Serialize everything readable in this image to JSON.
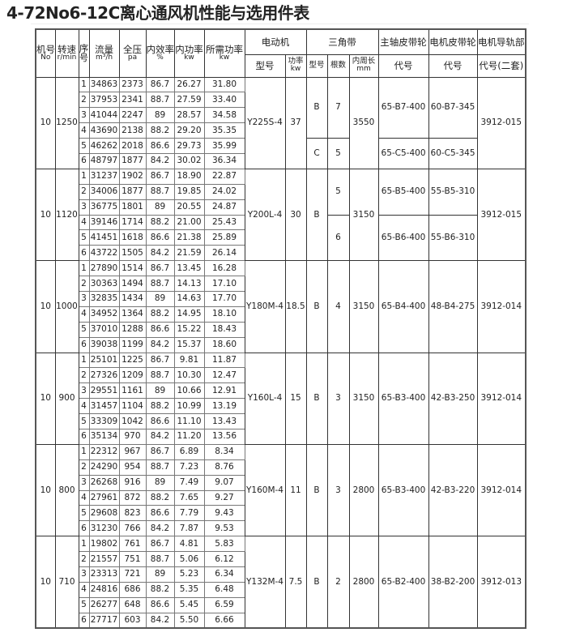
{
  "title": "4-72No6-12C离心通风机性能与选用件表",
  "headers": {
    "machine_no": "机号",
    "machine_no_unit": "No",
    "speed": "转速",
    "speed_unit": "r/min",
    "seq": "序",
    "seq_unit": "号",
    "flow": "流量",
    "flow_unit": "m³/h",
    "pressure": "全压",
    "pressure_unit": "pa",
    "efficiency": "内效率",
    "efficiency_unit": "%",
    "inner_power": "内功率",
    "inner_power_unit": "kw",
    "required_power": "所需功率",
    "required_power_unit": "kw",
    "motor": "电动机",
    "motor_model": "型号",
    "motor_power": "功率",
    "motor_power_unit": "kw",
    "vbelt": "三角带",
    "vbelt_type": "型号",
    "vbelt_count": "根数",
    "vbelt_length": "内周长",
    "vbelt_length_unit": "mm",
    "main_pulley": "主轴皮带轮",
    "main_pulley_code": "代号",
    "motor_pulley": "电机皮带轮",
    "motor_pulley_code": "代号",
    "rail": "电机导轨部",
    "rail_code": "代号(二套)"
  },
  "groups": [
    {
      "no": "10",
      "speed": "1250",
      "motor": "Y225S-4",
      "motor_kw": "37",
      "length": "3550",
      "rail": "3912-015",
      "belt_types": [
        {
          "v": "B",
          "rows": 4
        },
        {
          "v": "C",
          "rows": 2
        }
      ],
      "belt_counts": [
        {
          "v": "7",
          "rows": 4
        },
        {
          "v": "5",
          "rows": 2
        }
      ],
      "main_pulleys": [
        {
          "v": "65-B7-400",
          "rows": 4
        },
        {
          "v": "65-C5-400",
          "rows": 2
        }
      ],
      "motor_pulleys": [
        {
          "v": "60-B7-345",
          "rows": 4
        },
        {
          "v": "60-C5-345",
          "rows": 2
        }
      ],
      "rows": [
        [
          "1",
          "34863",
          "2373",
          "86.7",
          "26.27",
          "31.80"
        ],
        [
          "2",
          "37953",
          "2341",
          "88.7",
          "27.59",
          "33.40"
        ],
        [
          "3",
          "41044",
          "2247",
          "89",
          "28.57",
          "34.58"
        ],
        [
          "4",
          "43690",
          "2138",
          "88.2",
          "29.20",
          "35.35"
        ],
        [
          "5",
          "46262",
          "2018",
          "86.6",
          "29.73",
          "35.99"
        ],
        [
          "6",
          "48797",
          "1877",
          "84.2",
          "30.02",
          "36.34"
        ]
      ]
    },
    {
      "no": "10",
      "speed": "1120",
      "motor": "Y200L-4",
      "motor_kw": "30",
      "length": "3150",
      "rail": "3912-015",
      "belt_types": [
        {
          "v": "B",
          "rows": 6
        }
      ],
      "belt_counts": [
        {
          "v": "5",
          "rows": 3
        },
        {
          "v": "6",
          "rows": 3
        }
      ],
      "main_pulleys": [
        {
          "v": "65-B5-400",
          "rows": 3
        },
        {
          "v": "65-B6-400",
          "rows": 3
        }
      ],
      "motor_pulleys": [
        {
          "v": "55-B5-310",
          "rows": 3
        },
        {
          "v": "55-B6-310",
          "rows": 3
        }
      ],
      "rows": [
        [
          "1",
          "31237",
          "1902",
          "86.7",
          "18.90",
          "22.87"
        ],
        [
          "2",
          "34006",
          "1877",
          "88.7",
          "19.85",
          "24.02"
        ],
        [
          "3",
          "36775",
          "1801",
          "89",
          "20.55",
          "24.87"
        ],
        [
          "4",
          "39146",
          "1714",
          "88.2",
          "21.00",
          "25.43"
        ],
        [
          "5",
          "41451",
          "1618",
          "86.6",
          "21.38",
          "25.89"
        ],
        [
          "6",
          "43722",
          "1505",
          "84.2",
          "21.59",
          "26.14"
        ]
      ]
    },
    {
      "no": "10",
      "speed": "1000",
      "motor": "Y180M-4",
      "motor_kw": "18.5",
      "length": "3150",
      "rail": "3912-014",
      "belt_types": [
        {
          "v": "B",
          "rows": 6
        }
      ],
      "belt_counts": [
        {
          "v": "4",
          "rows": 6
        }
      ],
      "main_pulleys": [
        {
          "v": "65-B4-400",
          "rows": 6
        }
      ],
      "motor_pulleys": [
        {
          "v": "48-B4-275",
          "rows": 6
        }
      ],
      "rows": [
        [
          "1",
          "27890",
          "1514",
          "86.7",
          "13.45",
          "16.28"
        ],
        [
          "2",
          "30363",
          "1494",
          "88.7",
          "14.13",
          "17.10"
        ],
        [
          "3",
          "32835",
          "1434",
          "89",
          "14.63",
          "17.70"
        ],
        [
          "4",
          "34952",
          "1364",
          "88.2",
          "14.95",
          "18.10"
        ],
        [
          "5",
          "37010",
          "1288",
          "86.6",
          "15.22",
          "18.43"
        ],
        [
          "6",
          "39038",
          "1199",
          "84.2",
          "15.37",
          "18.60"
        ]
      ]
    },
    {
      "no": "10",
      "speed": "900",
      "motor": "Y160L-4",
      "motor_kw": "15",
      "length": "3150",
      "rail": "3912-014",
      "belt_types": [
        {
          "v": "B",
          "rows": 6
        }
      ],
      "belt_counts": [
        {
          "v": "3",
          "rows": 6
        }
      ],
      "main_pulleys": [
        {
          "v": "65-B3-400",
          "rows": 6
        }
      ],
      "motor_pulleys": [
        {
          "v": "42-B3-250",
          "rows": 6
        }
      ],
      "rows": [
        [
          "1",
          "25101",
          "1225",
          "86.7",
          "9.81",
          "11.87"
        ],
        [
          "2",
          "27326",
          "1209",
          "88.7",
          "10.30",
          "12.47"
        ],
        [
          "3",
          "29551",
          "1161",
          "89",
          "10.66",
          "12.91"
        ],
        [
          "4",
          "31457",
          "1104",
          "88.2",
          "10.99",
          "13.19"
        ],
        [
          "5",
          "33309",
          "1042",
          "86.6",
          "11.10",
          "13.43"
        ],
        [
          "6",
          "35134",
          "970",
          "84.2",
          "11.20",
          "13.56"
        ]
      ]
    },
    {
      "no": "10",
      "speed": "800",
      "motor": "Y160M-4",
      "motor_kw": "11",
      "length": "2800",
      "rail": "3912-014",
      "belt_types": [
        {
          "v": "B",
          "rows": 6
        }
      ],
      "belt_counts": [
        {
          "v": "3",
          "rows": 6
        }
      ],
      "main_pulleys": [
        {
          "v": "65-B3-400",
          "rows": 6
        }
      ],
      "motor_pulleys": [
        {
          "v": "42-B3-220",
          "rows": 6
        }
      ],
      "rows": [
        [
          "1",
          "22312",
          "967",
          "86.7",
          "6.89",
          "8.34"
        ],
        [
          "2",
          "24290",
          "954",
          "88.7",
          "7.23",
          "8.76"
        ],
        [
          "3",
          "26268",
          "916",
          "89",
          "7.49",
          "9.07"
        ],
        [
          "4",
          "27961",
          "872",
          "88.2",
          "7.65",
          "9.27"
        ],
        [
          "5",
          "29608",
          "823",
          "86.6",
          "7.79",
          "9.43"
        ],
        [
          "6",
          "31230",
          "766",
          "84.2",
          "7.87",
          "9.53"
        ]
      ]
    },
    {
      "no": "10",
      "speed": "710",
      "motor": "Y132M-4",
      "motor_kw": "7.5",
      "length": "2800",
      "rail": "3912-013",
      "belt_types": [
        {
          "v": "B",
          "rows": 6
        }
      ],
      "belt_counts": [
        {
          "v": "2",
          "rows": 6
        }
      ],
      "main_pulleys": [
        {
          "v": "65-B2-400",
          "rows": 6
        }
      ],
      "motor_pulleys": [
        {
          "v": "38-B2-200",
          "rows": 6
        }
      ],
      "rows": [
        [
          "1",
          "19802",
          "761",
          "86.7",
          "4.81",
          "5.83"
        ],
        [
          "2",
          "21557",
          "751",
          "88.7",
          "5.06",
          "6.12"
        ],
        [
          "3",
          "23313",
          "721",
          "89",
          "5.23",
          "6.34"
        ],
        [
          "4",
          "24816",
          "686",
          "88.2",
          "5.35",
          "6.48"
        ],
        [
          "5",
          "26277",
          "648",
          "86.6",
          "5.45",
          "6.59"
        ],
        [
          "6",
          "27717",
          "603",
          "84.2",
          "5.50",
          "6.66"
        ]
      ]
    }
  ]
}
